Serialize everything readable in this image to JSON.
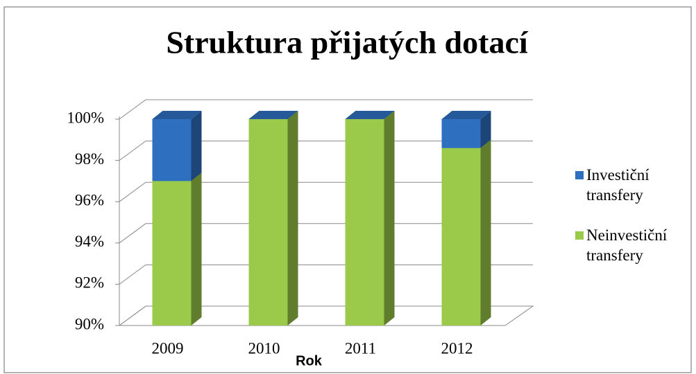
{
  "chart_data": {
    "type": "bar3d_stacked",
    "title": "Struktura přijatých dotací",
    "x_label": "Rok",
    "categories": [
      "2009",
      "2010",
      "2011",
      "2012"
    ],
    "series": [
      {
        "name": "Neinvestiční transfery",
        "color": "#9bc94a",
        "values": [
          97,
          100,
          100,
          98.6
        ]
      },
      {
        "name": "Investiční transfery",
        "color": "#2e6fc0",
        "values": [
          3,
          0,
          0,
          1.4
        ]
      }
    ],
    "ylim": [
      90,
      100
    ],
    "yticks": [
      {
        "value": 90,
        "label": "90%"
      },
      {
        "value": 92,
        "label": "92%"
      },
      {
        "value": 94,
        "label": "94%"
      },
      {
        "value": 96,
        "label": "96%"
      },
      {
        "value": 98,
        "label": "98%"
      },
      {
        "value": 100,
        "label": "100%"
      }
    ],
    "grid": true,
    "legend": "right"
  }
}
